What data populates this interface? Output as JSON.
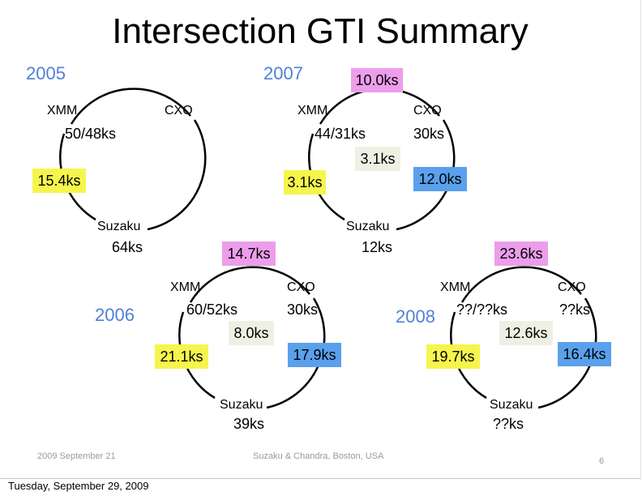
{
  "slide": {
    "title": "Intersection GTI Summary",
    "footer_date": "2009 September 21",
    "footer_center": "Suzaku & Chandra, Boston, USA",
    "page_number": "6"
  },
  "bottom_date": "Tuesday, September 29, 2009",
  "years": {
    "y2005": {
      "label": "2005",
      "xmm": "XMM",
      "xmm_time": "50/48ks",
      "cxo": "CXO",
      "suzaku": "Suzaku",
      "suzaku_time": "64ks",
      "xmm_suzaku": "15.4ks"
    },
    "y2007": {
      "label": "2007",
      "xmm": "XMM",
      "xmm_time": "44/31ks",
      "cxo": "CXO",
      "cxo_time": "30ks",
      "suzaku": "Suzaku",
      "suzaku_time": "12ks",
      "xmm_cxo": "10.0ks",
      "xmm_suzaku": "3.1ks",
      "cxo_suzaku": "12.0ks",
      "all_three": "3.1ks"
    },
    "y2006": {
      "label": "2006",
      "xmm": "XMM",
      "xmm_time": "60/52ks",
      "cxo": "CXO",
      "cxo_time": "30ks",
      "suzaku": "Suzaku",
      "suzaku_time": "39ks",
      "xmm_cxo": "14.7ks",
      "xmm_suzaku": "21.1ks",
      "cxo_suzaku": "17.9ks",
      "all_three": "8.0ks"
    },
    "y2008": {
      "label": "2008",
      "xmm": "XMM",
      "xmm_time": "??/??ks",
      "cxo": "CXO",
      "cxo_time": "??ks",
      "suzaku": "Suzaku",
      "suzaku_time": "??ks",
      "xmm_cxo": "23.6ks",
      "xmm_suzaku": "19.7ks",
      "cxo_suzaku": "16.4ks",
      "all_three": "12.6ks"
    }
  },
  "colors": {
    "year_label": "#4f81d7",
    "xmm_suzaku_box": "#f6f54c",
    "xmm_cxo_box": "#ec9eeb",
    "cxo_suzaku_box": "#5aa0ec",
    "all_three_box": "#efefe4"
  }
}
